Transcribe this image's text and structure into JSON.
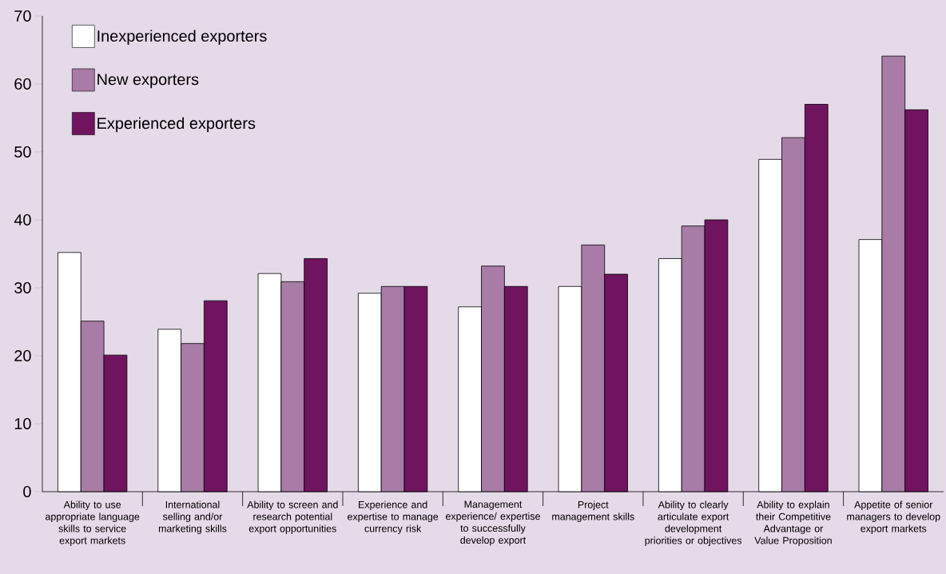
{
  "chart_data": {
    "type": "bar",
    "categories": [
      "Ability to use appropriate language skills to service export markets",
      "International selling and/or marketing skills",
      "Ability to screen and research potential export opportunities",
      "Experience and expertise to manage currency risk",
      "Management experience/ expertise to successfully develop export",
      "Project management skills",
      "Ability to clearly articulate export development priorities or objectives",
      "Ability to explain their Competitive Advantage or Value Proposition",
      "Appetite of senior managers to develop export markets"
    ],
    "series": [
      {
        "name": "Inexperienced exporters",
        "color": "#ffffff",
        "values": [
          35.2,
          23.9,
          32.1,
          29.2,
          27.2,
          30.2,
          34.3,
          48.9,
          37.1
        ]
      },
      {
        "name": "New exporters",
        "color": "#a87ca6",
        "values": [
          25.1,
          21.8,
          30.9,
          30.2,
          33.2,
          36.3,
          39.1,
          52.1,
          64.1
        ]
      },
      {
        "name": "Experienced exporters",
        "color": "#701460",
        "values": [
          20.1,
          28.1,
          34.3,
          30.2,
          30.2,
          32.0,
          40.0,
          57.0,
          56.2
        ]
      }
    ],
    "ylim": [
      0,
      70
    ],
    "yticks": [
      0,
      10,
      20,
      30,
      40,
      50,
      60,
      70
    ],
    "legend": "top left"
  }
}
